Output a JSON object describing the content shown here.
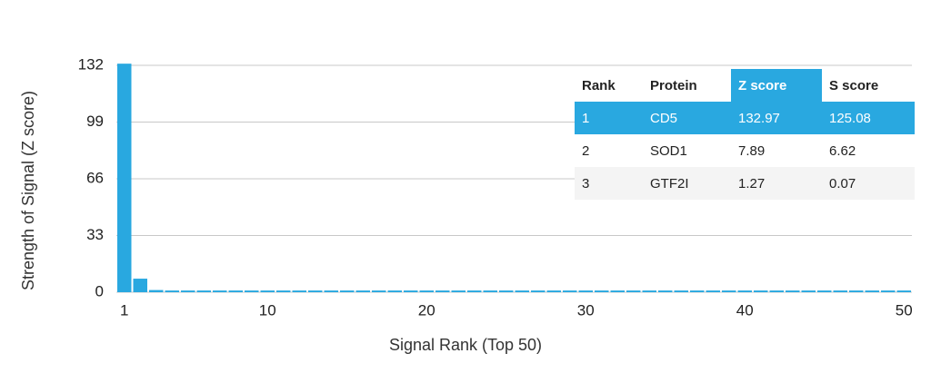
{
  "chart_data": {
    "type": "bar",
    "x_label": "Signal Rank (Top 50)",
    "y_label": "Strength of Signal (Z score)",
    "x": [
      1,
      2,
      3,
      4,
      5,
      6,
      7,
      8,
      9,
      10,
      11,
      12,
      13,
      14,
      15,
      16,
      17,
      18,
      19,
      20,
      21,
      22,
      23,
      24,
      25,
      26,
      27,
      28,
      29,
      30,
      31,
      32,
      33,
      34,
      35,
      36,
      37,
      38,
      39,
      40,
      41,
      42,
      43,
      44,
      45,
      46,
      47,
      48,
      49,
      50
    ],
    "values": [
      132.97,
      7.89,
      1.27,
      1,
      1,
      1,
      1,
      1,
      1,
      1,
      1,
      1,
      1,
      1,
      1,
      1,
      1,
      1,
      1,
      1,
      1,
      1,
      1,
      1,
      1,
      1,
      1,
      1,
      1,
      1,
      1,
      1,
      1,
      1,
      1,
      1,
      1,
      1,
      1,
      1,
      1,
      1,
      1,
      1,
      1,
      1,
      1,
      1,
      1,
      1
    ],
    "color": "#29a8e0",
    "xlim": [
      0.5,
      50.5
    ],
    "xticks": [
      1,
      10,
      20,
      30,
      40,
      50
    ],
    "ylim": [
      0,
      132
    ],
    "yticks": [
      0,
      33,
      66,
      99,
      132
    ],
    "grid": true
  },
  "table": {
    "columns": [
      "Rank",
      "Protein",
      "Z score",
      "S score"
    ],
    "rows": [
      [
        1,
        "CD5",
        132.97,
        125.08
      ],
      [
        2,
        "SOD1",
        7.89,
        6.62
      ],
      [
        3,
        "GTF2I",
        1.27,
        0.07
      ]
    ],
    "highlight_column": 2,
    "highlight_row": 0,
    "highlight_color": "#29a8e0"
  }
}
